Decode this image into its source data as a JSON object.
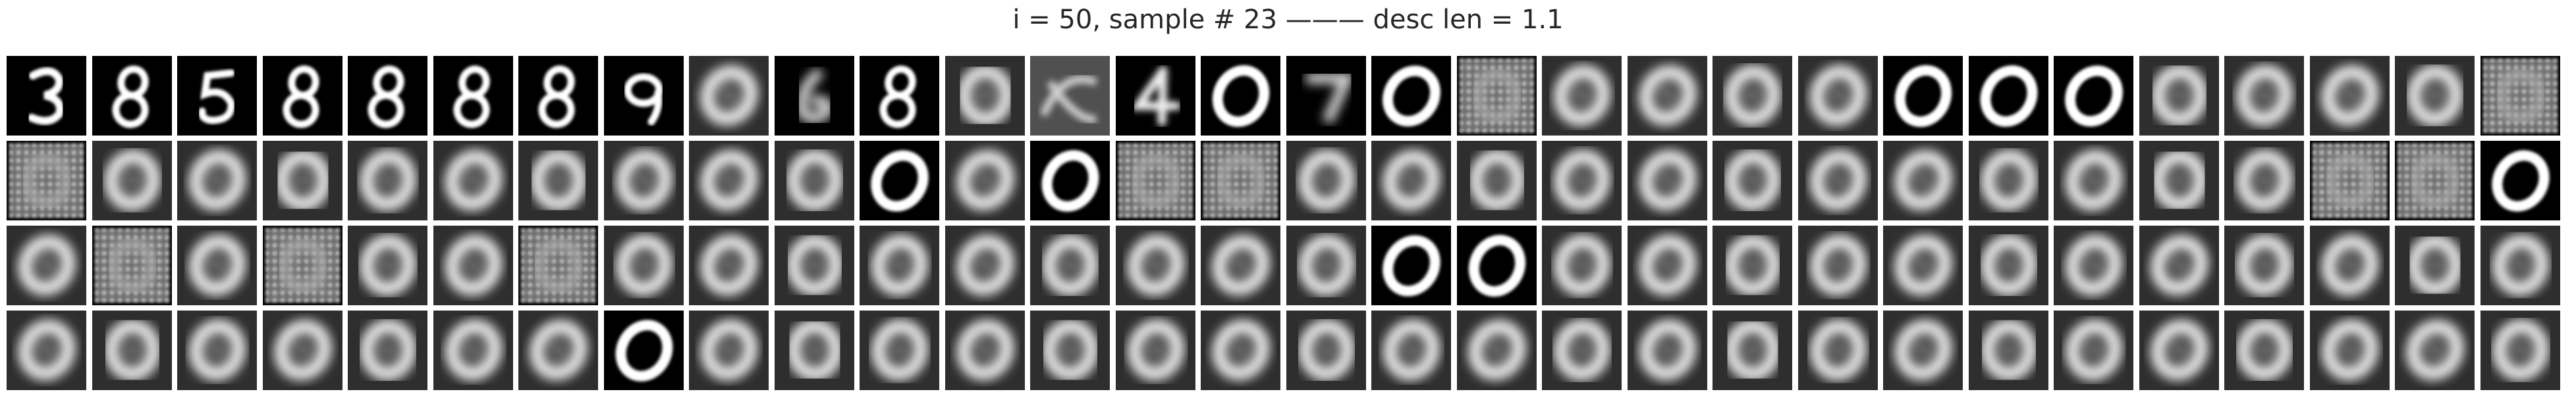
{
  "title": "i = 50, sample # 23 ——— desc len = 1.1",
  "grid": {
    "rows": 4,
    "cols": 30,
    "tiles": [
      "digit-3",
      "digit-8",
      "digit-5",
      "digit-8",
      "digit-8",
      "digit-8",
      "digit-8",
      "digit-9",
      "blur-0",
      "blur-6",
      "digit-8",
      "blur-0",
      "noise",
      "digit-4",
      "digit-0",
      "blur-7",
      "digit-0",
      "noise-grid",
      "blur-0",
      "blur-0",
      "blur-0",
      "blur-0",
      "digit-0",
      "digit-0",
      "digit-0",
      "blur-0",
      "blur-0",
      "blur-0",
      "blur-0",
      "noise-grid",
      "noise-grid",
      "blur-0",
      "blur-0",
      "blur-0",
      "blur-0",
      "blur-0",
      "blur-0",
      "blur-0",
      "blur-0",
      "blur-0",
      "digit-0",
      "blur-0",
      "digit-0",
      "noise-grid",
      "noise-grid",
      "blur-0",
      "blur-0",
      "blur-0",
      "blur-0",
      "blur-0",
      "blur-0",
      "blur-0",
      "blur-0",
      "blur-0",
      "blur-0",
      "blur-0",
      "blur-0",
      "noise-grid",
      "noise-grid",
      "digit-0",
      "blur-0",
      "noise-grid",
      "blur-0",
      "noise-grid",
      "blur-0",
      "blur-0",
      "noise-grid",
      "blur-0",
      "blur-0",
      "blur-0",
      "blur-0",
      "blur-0",
      "blur-0",
      "blur-0",
      "blur-0",
      "blur-0",
      "digit-0",
      "digit-0",
      "blur-0",
      "blur-0",
      "blur-0",
      "blur-0",
      "blur-0",
      "blur-0",
      "blur-0",
      "blur-0",
      "blur-0",
      "blur-0",
      "blur-0",
      "blur-0",
      "blur-0",
      "blur-0",
      "blur-0",
      "blur-0",
      "blur-0",
      "blur-0",
      "blur-0",
      "digit-0",
      "blur-0",
      "blur-0",
      "blur-0",
      "blur-0",
      "blur-0",
      "blur-0",
      "blur-0",
      "blur-0",
      "blur-0",
      "blur-0",
      "blur-0",
      "blur-0",
      "blur-0",
      "blur-0",
      "blur-0",
      "blur-0",
      "blur-0",
      "blur-0",
      "blur-0",
      "blur-0",
      "blur-0",
      "blur-0"
    ]
  }
}
